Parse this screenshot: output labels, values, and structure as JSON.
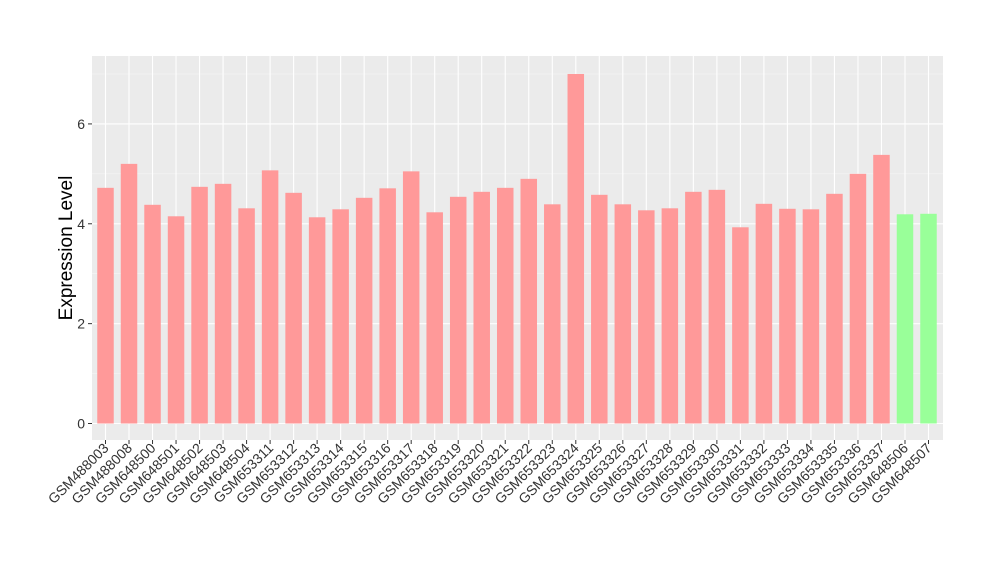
{
  "chart_data": {
    "type": "bar",
    "title": "",
    "xlabel": "",
    "ylabel": "Expression Level",
    "ylim": [
      0,
      7.35
    ],
    "yticks": [
      0,
      2,
      4,
      6
    ],
    "ytick_labels": [
      "0",
      "2",
      "4",
      "6"
    ],
    "grid": true,
    "legend": "none",
    "categories": [
      "GSM488003",
      "GSM488008",
      "GSM648500",
      "GSM648501",
      "GSM648502",
      "GSM648503",
      "GSM648504",
      "GSM653311",
      "GSM653312",
      "GSM653313",
      "GSM653314",
      "GSM653315",
      "GSM653316",
      "GSM653317",
      "GSM653318",
      "GSM653319",
      "GSM653320",
      "GSM653321",
      "GSM653322",
      "GSM653323",
      "GSM653324",
      "GSM653325",
      "GSM653326",
      "GSM653327",
      "GSM653328",
      "GSM653329",
      "GSM653330",
      "GSM653331",
      "GSM653332",
      "GSM653333",
      "GSM653334",
      "GSM653335",
      "GSM653336",
      "GSM653337",
      "GSM648506",
      "GSM648507"
    ],
    "values": [
      4.72,
      5.2,
      4.38,
      4.15,
      4.74,
      4.8,
      4.31,
      5.07,
      4.62,
      4.13,
      4.29,
      4.52,
      4.71,
      5.05,
      4.23,
      4.54,
      4.64,
      4.72,
      4.9,
      4.39,
      7.0,
      4.58,
      4.39,
      4.27,
      4.31,
      4.64,
      4.68,
      3.93,
      4.4,
      4.3,
      4.29,
      4.6,
      5.0,
      5.38,
      4.19,
      4.2
    ],
    "groups": [
      "a",
      "a",
      "a",
      "a",
      "a",
      "a",
      "a",
      "a",
      "a",
      "a",
      "a",
      "a",
      "a",
      "a",
      "a",
      "a",
      "a",
      "a",
      "a",
      "a",
      "a",
      "a",
      "a",
      "a",
      "a",
      "a",
      "a",
      "a",
      "a",
      "a",
      "a",
      "a",
      "a",
      "a",
      "b",
      "b"
    ],
    "colors": {
      "a": "#ff9999",
      "b": "#99ff99",
      "panel": "#ebebeb",
      "grid_major": "#ffffff",
      "grid_minor": "#f5f5f5"
    }
  }
}
